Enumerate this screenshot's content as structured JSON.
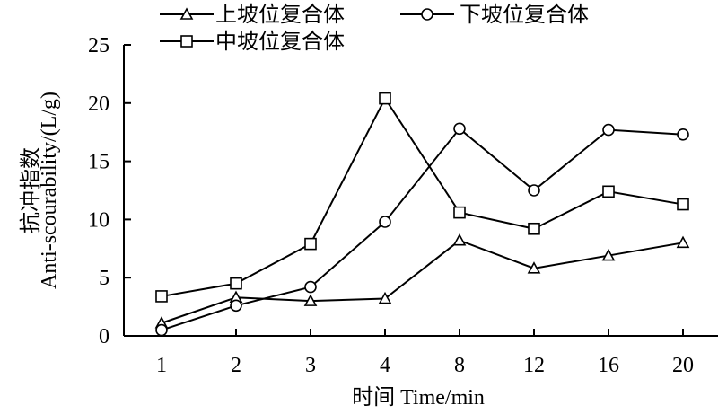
{
  "chart_data": {
    "type": "line",
    "categories": [
      "1",
      "2",
      "3",
      "4",
      "8",
      "12",
      "16",
      "20"
    ],
    "series": [
      {
        "name": "上坡位复合体",
        "marker": "triangle",
        "values": [
          1.1,
          3.3,
          3.0,
          3.2,
          8.2,
          5.8,
          6.9,
          8.0
        ]
      },
      {
        "name": "下坡位复合体",
        "marker": "circle",
        "values": [
          0.5,
          2.6,
          4.2,
          9.8,
          17.8,
          12.5,
          17.7,
          17.3
        ]
      },
      {
        "name": "中坡位复合体",
        "marker": "square",
        "values": [
          3.4,
          4.5,
          7.9,
          20.4,
          10.6,
          9.2,
          12.4,
          11.3
        ]
      }
    ],
    "xlabel": "时间 Time/min",
    "ylabel_cn": "抗冲指数",
    "ylabel_en": "Anti-scourability/(L/g)",
    "ylim": [
      0,
      25
    ],
    "yticks": [
      0,
      5,
      10,
      15,
      20,
      25
    ],
    "grid": false,
    "legend_position": "top"
  }
}
